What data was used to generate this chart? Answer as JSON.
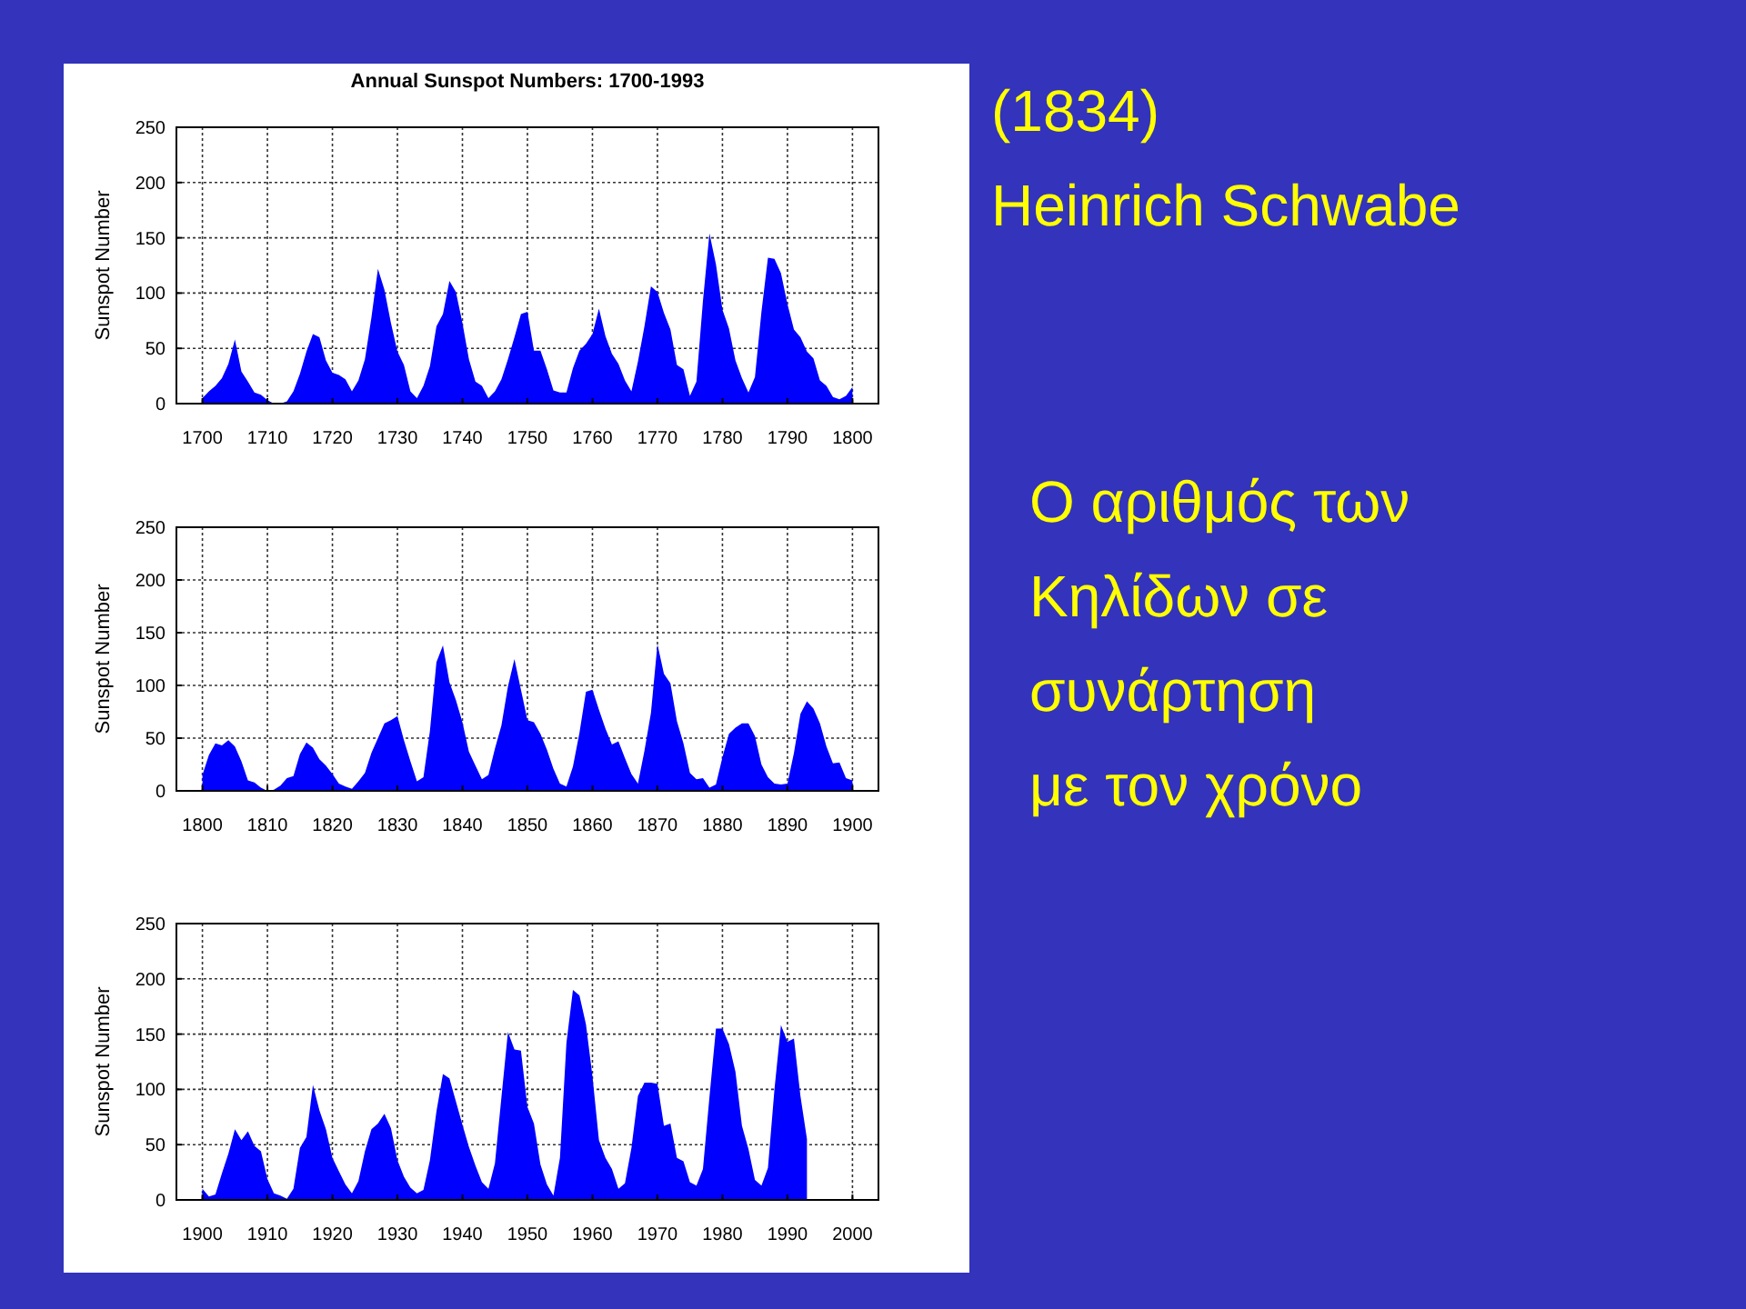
{
  "chart_data": [
    {
      "type": "area",
      "title": "Annual Sunspot Numbers:  1700-1993",
      "ylabel": "Sunspot Number",
      "xlim": [
        1696,
        1804
      ],
      "xticks": [
        1700,
        1710,
        1720,
        1730,
        1740,
        1750,
        1760,
        1770,
        1780,
        1790,
        1800
      ],
      "ylim": [
        0,
        250
      ],
      "yticks": [
        0,
        50,
        100,
        150,
        200,
        250
      ],
      "grid": true,
      "x": [
        1700,
        1701,
        1702,
        1703,
        1704,
        1705,
        1706,
        1707,
        1708,
        1709,
        1710,
        1711,
        1712,
        1713,
        1714,
        1715,
        1716,
        1717,
        1718,
        1719,
        1720,
        1721,
        1722,
        1723,
        1724,
        1725,
        1726,
        1727,
        1728,
        1729,
        1730,
        1731,
        1732,
        1733,
        1734,
        1735,
        1736,
        1737,
        1738,
        1739,
        1740,
        1741,
        1742,
        1743,
        1744,
        1745,
        1746,
        1747,
        1748,
        1749,
        1750,
        1751,
        1752,
        1753,
        1754,
        1755,
        1756,
        1757,
        1758,
        1759,
        1760,
        1761,
        1762,
        1763,
        1764,
        1765,
        1766,
        1767,
        1768,
        1769,
        1770,
        1771,
        1772,
        1773,
        1774,
        1775,
        1776,
        1777,
        1778,
        1779,
        1780,
        1781,
        1782,
        1783,
        1784,
        1785,
        1786,
        1787,
        1788,
        1789,
        1790,
        1791,
        1792,
        1793,
        1794,
        1795,
        1796,
        1797,
        1798,
        1799,
        1800
      ],
      "series": [
        {
          "color": "#0000ff",
          "values": [
            5,
            11,
            16,
            23,
            36,
            58,
            29,
            20,
            10,
            8,
            3,
            0,
            0,
            2,
            11,
            27,
            47,
            63,
            60,
            39,
            28,
            26,
            22,
            11,
            21,
            40,
            78,
            122,
            103,
            73,
            47,
            35,
            11,
            5,
            16,
            34,
            70,
            81,
            111,
            101,
            73,
            40,
            20,
            16,
            5,
            11,
            22,
            40,
            60,
            81,
            83,
            48,
            48,
            31,
            12,
            10,
            10,
            32,
            48,
            54,
            63,
            86,
            61,
            45,
            36,
            21,
            11,
            38,
            70,
            106,
            101,
            82,
            67,
            35,
            31,
            7,
            20,
            93,
            154,
            126,
            85,
            68,
            39,
            23,
            10,
            24,
            83,
            132,
            131,
            118,
            90,
            67,
            60,
            47,
            41,
            21,
            16,
            6,
            4,
            7,
            15
          ]
        }
      ]
    },
    {
      "type": "area",
      "ylabel": "Sunspot Number",
      "xlim": [
        1796,
        1904
      ],
      "xticks": [
        1800,
        1810,
        1820,
        1830,
        1840,
        1850,
        1860,
        1870,
        1880,
        1890,
        1900
      ],
      "ylim": [
        0,
        250
      ],
      "yticks": [
        0,
        50,
        100,
        150,
        200,
        250
      ],
      "grid": true,
      "x": [
        1800,
        1801,
        1802,
        1803,
        1804,
        1805,
        1806,
        1807,
        1808,
        1809,
        1810,
        1811,
        1812,
        1813,
        1814,
        1815,
        1816,
        1817,
        1818,
        1819,
        1820,
        1821,
        1822,
        1823,
        1824,
        1825,
        1826,
        1827,
        1828,
        1829,
        1830,
        1831,
        1832,
        1833,
        1834,
        1835,
        1836,
        1837,
        1838,
        1839,
        1840,
        1841,
        1842,
        1843,
        1844,
        1845,
        1846,
        1847,
        1848,
        1849,
        1850,
        1851,
        1852,
        1853,
        1854,
        1855,
        1856,
        1857,
        1858,
        1859,
        1860,
        1861,
        1862,
        1863,
        1864,
        1865,
        1866,
        1867,
        1868,
        1869,
        1870,
        1871,
        1872,
        1873,
        1874,
        1875,
        1876,
        1877,
        1878,
        1879,
        1880,
        1881,
        1882,
        1883,
        1884,
        1885,
        1886,
        1887,
        1888,
        1889,
        1890,
        1891,
        1892,
        1893,
        1894,
        1895,
        1896,
        1897,
        1898,
        1899,
        1900
      ],
      "series": [
        {
          "color": "#0000ff",
          "values": [
            15,
            34,
            45,
            43,
            48,
            42,
            28,
            10,
            8,
            3,
            0,
            1,
            5,
            12,
            14,
            35,
            46,
            41,
            30,
            24,
            16,
            7,
            4,
            2,
            9,
            17,
            36,
            50,
            64,
            67,
            71,
            48,
            28,
            9,
            13,
            57,
            122,
            138,
            103,
            86,
            65,
            37,
            24,
            11,
            15,
            40,
            62,
            99,
            125,
            96,
            67,
            65,
            54,
            39,
            21,
            7,
            4,
            23,
            55,
            94,
            96,
            77,
            59,
            44,
            47,
            31,
            16,
            7,
            38,
            74,
            139,
            111,
            102,
            66,
            45,
            17,
            11,
            12,
            3,
            6,
            32,
            54,
            60,
            64,
            64,
            52,
            25,
            13,
            7,
            6,
            7,
            36,
            73,
            85,
            78,
            64,
            42,
            26,
            27,
            12,
            10
          ]
        }
      ]
    },
    {
      "type": "area",
      "ylabel": "Sunspot Number",
      "xlim": [
        1896,
        2004
      ],
      "xticks": [
        1900,
        1910,
        1920,
        1930,
        1940,
        1950,
        1960,
        1970,
        1980,
        1990,
        2000
      ],
      "ylim": [
        0,
        250
      ],
      "yticks": [
        0,
        50,
        100,
        150,
        200,
        250
      ],
      "grid": true,
      "x": [
        1900,
        1901,
        1902,
        1903,
        1904,
        1905,
        1906,
        1907,
        1908,
        1909,
        1910,
        1911,
        1912,
        1913,
        1914,
        1915,
        1916,
        1917,
        1918,
        1919,
        1920,
        1921,
        1922,
        1923,
        1924,
        1925,
        1926,
        1927,
        1928,
        1929,
        1930,
        1931,
        1932,
        1933,
        1934,
        1935,
        1936,
        1937,
        1938,
        1939,
        1940,
        1941,
        1942,
        1943,
        1944,
        1945,
        1946,
        1947,
        1948,
        1949,
        1950,
        1951,
        1952,
        1953,
        1954,
        1955,
        1956,
        1957,
        1958,
        1959,
        1960,
        1961,
        1962,
        1963,
        1964,
        1965,
        1966,
        1967,
        1968,
        1969,
        1970,
        1971,
        1972,
        1973,
        1974,
        1975,
        1976,
        1977,
        1978,
        1979,
        1980,
        1981,
        1982,
        1983,
        1984,
        1985,
        1986,
        1987,
        1988,
        1989,
        1990,
        1991,
        1992,
        1993
      ],
      "series": [
        {
          "color": "#0000ff",
          "values": [
            10,
            3,
            5,
            24,
            42,
            64,
            54,
            62,
            49,
            44,
            19,
            6,
            4,
            1,
            10,
            47,
            57,
            104,
            81,
            64,
            38,
            26,
            14,
            6,
            17,
            44,
            64,
            69,
            78,
            65,
            36,
            21,
            11,
            6,
            9,
            36,
            80,
            114,
            110,
            89,
            68,
            48,
            31,
            16,
            10,
            33,
            93,
            152,
            136,
            135,
            84,
            69,
            32,
            14,
            4,
            38,
            142,
            190,
            185,
            159,
            112,
            54,
            38,
            28,
            10,
            15,
            47,
            94,
            106,
            106,
            105,
            67,
            69,
            38,
            35,
            16,
            13,
            28,
            93,
            155,
            155,
            141,
            116,
            67,
            46,
            18,
            13,
            29,
            100,
            158,
            143,
            146,
            94,
            55
          ]
        }
      ]
    },
    {
      "type": "other",
      "annotations": [
        "(1834)",
        "Heinrich Schwabe",
        "Ο αριθμός των",
        "Κηλίδων σε",
        "συνάρτηση",
        "με τον χρόνο"
      ]
    }
  ]
}
